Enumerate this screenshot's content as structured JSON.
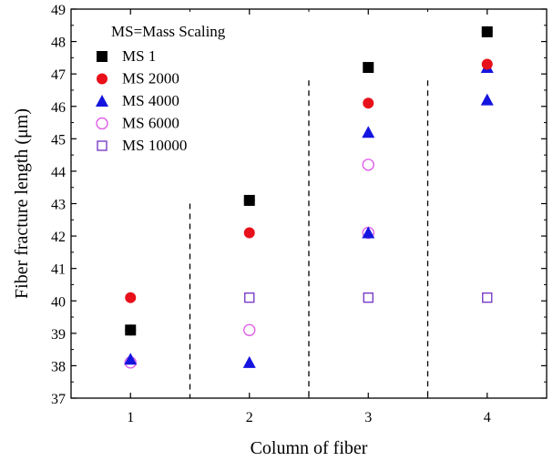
{
  "chart_data": {
    "type": "scatter",
    "xlabel": "Column of fiber",
    "ylabel": "Fiber fracture length (μm)",
    "x_ticks": [
      1,
      2,
      3,
      4
    ],
    "ylim": [
      37,
      49
    ],
    "y_ticks": [
      37,
      38,
      39,
      40,
      41,
      42,
      43,
      44,
      45,
      46,
      47,
      48,
      49
    ],
    "grid": false,
    "legend_position": "top-left",
    "legend_title": "MS=Mass Scaling",
    "separators_x": [
      1.5,
      2.5,
      3.5
    ],
    "series": [
      {
        "name": "MS 1",
        "marker": "filled-square",
        "color": "#000000",
        "points": [
          [
            1,
            39.1
          ],
          [
            2,
            43.1
          ],
          [
            3,
            47.2
          ],
          [
            4,
            48.3
          ]
        ]
      },
      {
        "name": "MS 2000",
        "marker": "filled-circle",
        "color": "#e8101a",
        "points": [
          [
            1,
            40.1
          ],
          [
            1,
            39.1
          ],
          [
            2,
            42.1
          ],
          [
            2,
            43.1
          ],
          [
            3,
            46.1
          ],
          [
            4,
            47.3
          ],
          [
            4,
            48.3
          ]
        ]
      },
      {
        "name": "MS 4000",
        "marker": "filled-triangle",
        "color": "#1414e0",
        "points": [
          [
            1,
            38.2
          ],
          [
            2,
            38.1
          ],
          [
            3,
            45.2
          ],
          [
            3,
            42.1
          ],
          [
            4,
            47.2
          ],
          [
            4,
            46.2
          ]
        ]
      },
      {
        "name": "MS 6000",
        "marker": "open-circle",
        "color": "#e060e8",
        "points": [
          [
            1,
            38.1
          ],
          [
            2,
            39.1
          ],
          [
            3,
            44.2
          ],
          [
            3,
            42.1
          ]
        ]
      },
      {
        "name": "MS 10000",
        "marker": "open-square",
        "color": "#7a3cc8",
        "points": [
          [
            2,
            40.1
          ],
          [
            3,
            40.1
          ],
          [
            4,
            40.1
          ]
        ]
      }
    ]
  }
}
